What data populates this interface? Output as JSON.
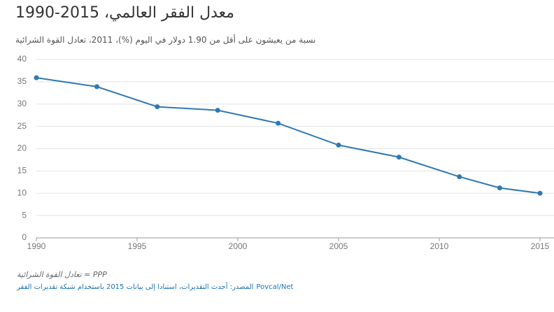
{
  "chart_data": {
    "type": "line",
    "title": "معدل الفقر العالمي، 2015-1990",
    "subtitle": "نسبة من يعيشون على أقل من 1.90 دولار في اليوم (%)، 2011، تعادل القوة الشرائية",
    "note": "PPP = تعادل القوة الشرائية",
    "source": "المصدر: أحدث التقديرات، استنادا إلى بيانات 2015 باستخدام شبكة تقديرات الفقر",
    "source_link": "Povcal/Net",
    "x": [
      1990,
      1993,
      1996,
      1999,
      2002,
      2005,
      2008,
      2011,
      2013,
      2015
    ],
    "series": [
      {
        "name": "معدل الفقر العالمي",
        "color": "#2f78b4",
        "values": [
          35.9,
          33.9,
          29.4,
          28.6,
          25.7,
          20.8,
          18.1,
          13.7,
          11.2,
          10.0
        ]
      }
    ],
    "xlim": [
      1990,
      2015
    ],
    "xticks": [
      1990,
      1995,
      2000,
      2005,
      2010,
      2015
    ],
    "ylim": [
      0,
      40
    ],
    "yticks": [
      0,
      5,
      10,
      15,
      20,
      25,
      30,
      35,
      40
    ],
    "grid": true
  }
}
